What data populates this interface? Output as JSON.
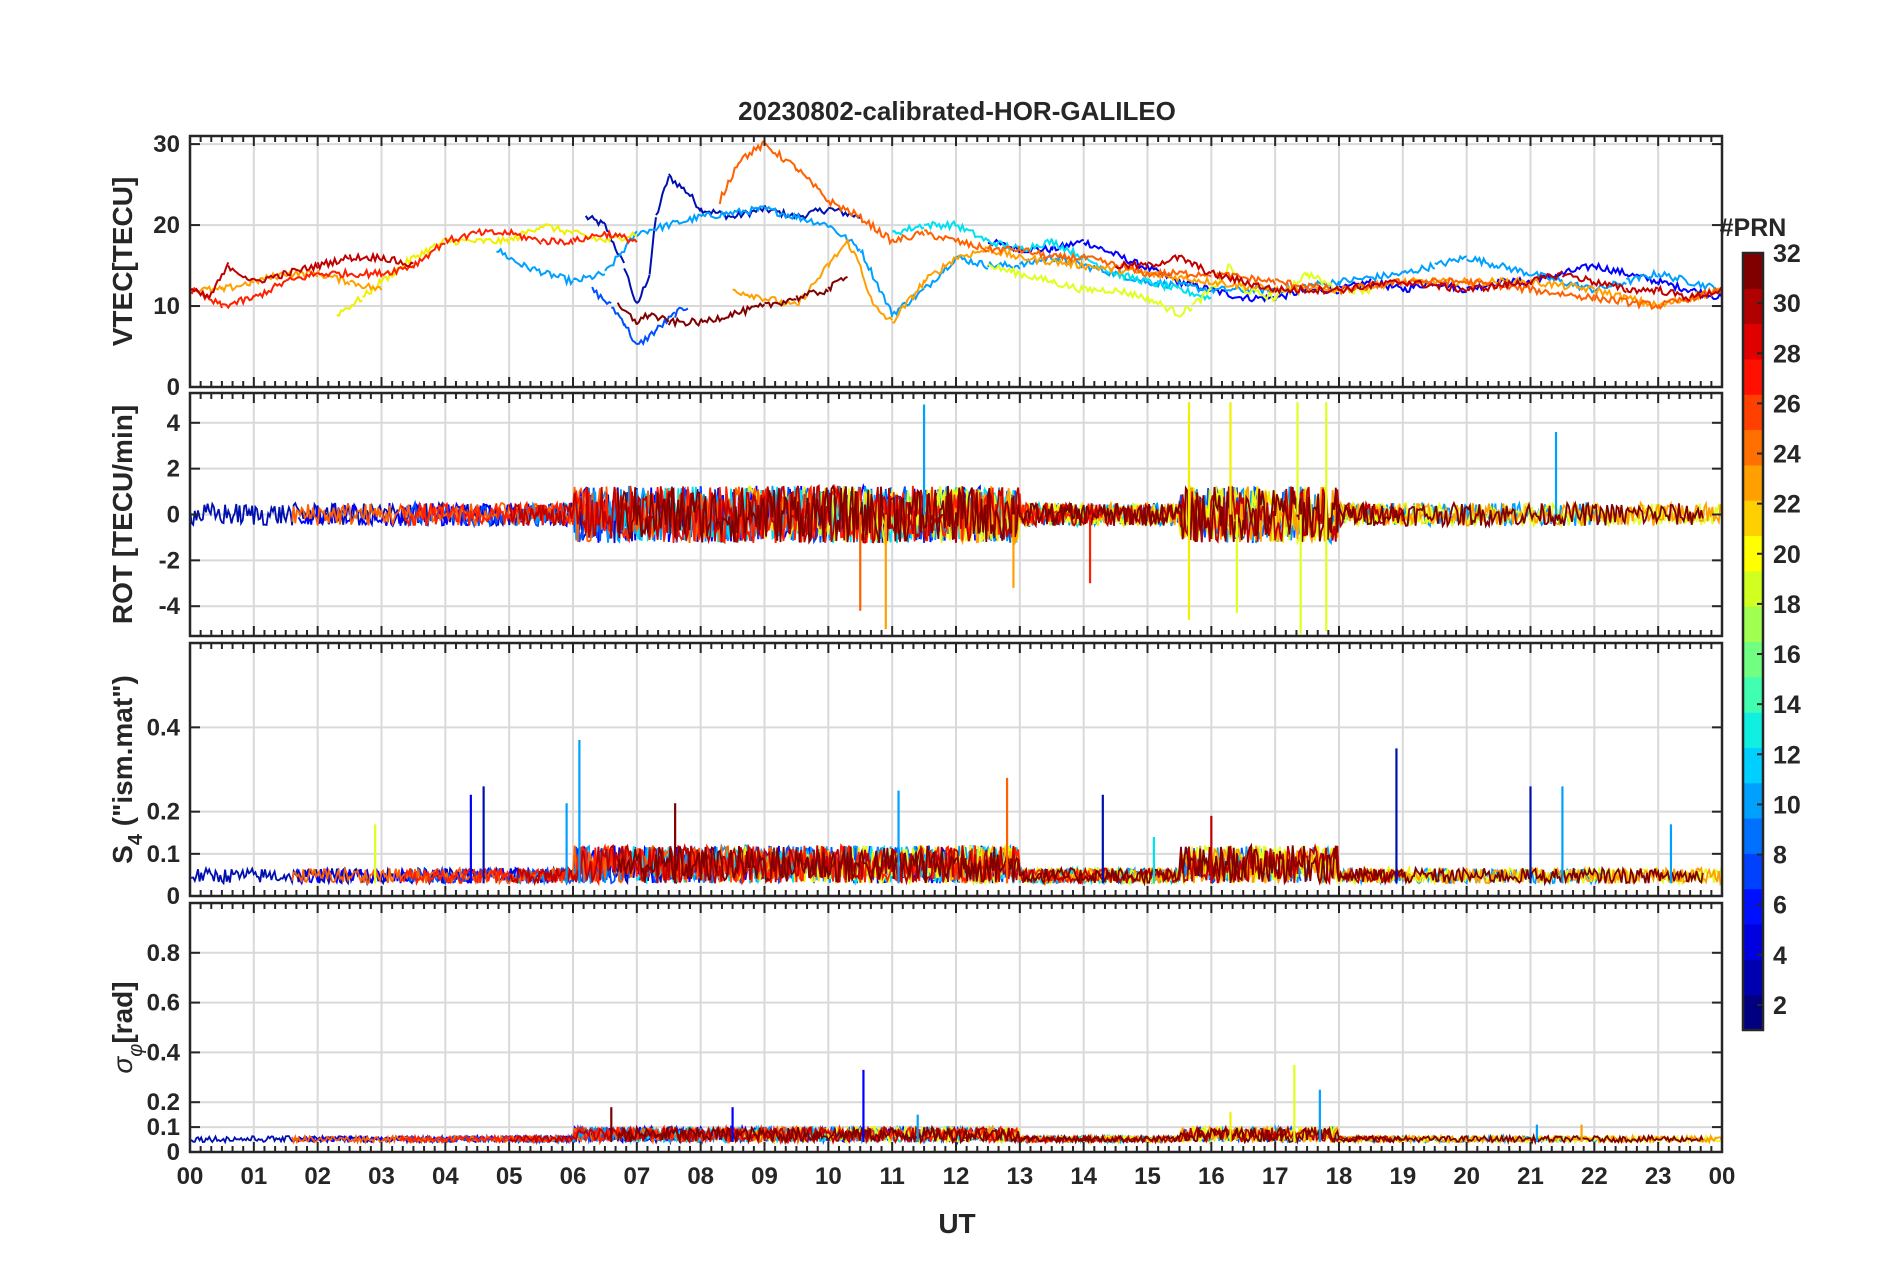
{
  "figure": {
    "title": "20230802-calibrated-HOR-GALILEO",
    "colors": {
      "grid": "#d9d9d9",
      "axes": "#262626",
      "background": "#ffffff"
    }
  },
  "chart_data": [
    {
      "type": "line",
      "panel": "vtec",
      "title": "20230802-calibrated-HOR-GALILEO",
      "ylabel": "VTEC[TECU]",
      "xlabel": "",
      "xlim": [
        0,
        24
      ],
      "ylim": [
        0,
        31
      ],
      "yticks": [
        0,
        10,
        20,
        30
      ],
      "ytick_labels": [
        "0",
        "10",
        "20",
        "30"
      ],
      "grid": true,
      "series": [
        {
          "prn": 2,
          "color": "#0010b0",
          "x": [
            6.2,
            6.5,
            6.8,
            7.0,
            7.2,
            7.3,
            7.5,
            7.8,
            8.0,
            8.5,
            9.0,
            9.5,
            10.0,
            10.5
          ],
          "y": [
            21,
            20,
            15,
            10,
            14,
            21,
            26,
            24,
            22,
            21,
            22,
            21,
            22,
            21
          ]
        },
        {
          "prn": 3,
          "color": "#0000ff",
          "x": [
            12.5,
            13.0,
            13.5,
            14.0,
            14.3,
            15.5,
            16.0,
            16.5,
            17.0,
            17.5,
            18.0,
            18.5,
            19.0,
            19.5,
            20.0,
            20.5,
            21.0,
            21.5,
            22.0,
            22.5,
            23.0,
            23.5,
            24.0
          ],
          "y": [
            18,
            17,
            17,
            18,
            17,
            13,
            12,
            11,
            11,
            12,
            12,
            13,
            12,
            13,
            12,
            13,
            13,
            14,
            15,
            14,
            13,
            12,
            11
          ]
        },
        {
          "prn": 7,
          "color": "#0050ff",
          "x": [
            6.3,
            6.6,
            6.8,
            7.0,
            7.3,
            7.6,
            7.8
          ],
          "y": [
            12,
            10,
            8,
            5,
            7,
            9,
            10
          ]
        },
        {
          "prn": 10,
          "color": "#00a0ff",
          "x": [
            4.8,
            5.2,
            5.6,
            6.0,
            6.5,
            7.0,
            8.0,
            9.0,
            10.0,
            10.5,
            11.0,
            11.5,
            12.0,
            12.5,
            13.0,
            13.5,
            14.0,
            15.0,
            16.0,
            17.0,
            18.0,
            19.0,
            19.5,
            20.0,
            20.5,
            21.0,
            21.5,
            22.0,
            22.5,
            23.0,
            23.5,
            24.0
          ],
          "y": [
            17,
            15,
            14,
            13,
            14,
            19,
            21,
            22,
            20,
            17,
            9,
            12,
            16,
            15,
            15,
            16,
            15,
            13,
            12,
            12,
            13,
            14,
            15,
            16,
            15,
            14,
            13,
            12,
            13,
            14,
            13,
            12
          ]
        },
        {
          "prn": 13,
          "color": "#00e0f0",
          "x": [
            11.0,
            11.5,
            12.0,
            12.5,
            13.0,
            13.5,
            14.0,
            14.5,
            15.0,
            15.5,
            16.0
          ],
          "y": [
            19,
            20,
            20,
            18,
            17,
            18,
            16,
            14,
            13,
            12,
            11
          ]
        },
        {
          "prn": 20,
          "color": "#f0f000",
          "x": [
            2.3,
            2.7,
            3.0,
            3.5,
            4.0,
            4.5,
            5.0,
            5.5,
            6.0,
            6.5,
            7.0
          ],
          "y": [
            9,
            11,
            13,
            16,
            18,
            18,
            18,
            20,
            19,
            18,
            19
          ]
        },
        {
          "prn": 21,
          "color": "#e0ff20",
          "x": [
            12.5,
            13.0,
            13.5,
            14.0,
            14.5,
            15.0,
            15.5,
            15.7,
            16.0,
            16.3,
            16.5,
            17.0,
            17.5,
            18.0,
            18.5
          ],
          "y": [
            15,
            14,
            13,
            12,
            12,
            11,
            9,
            10,
            12,
            15,
            12,
            11,
            14,
            12,
            12
          ]
        },
        {
          "prn": 23,
          "color": "#ffa000",
          "x": [
            0.0,
            0.5,
            1.0,
            1.5,
            2.0,
            2.5,
            3.0,
            8.5,
            9.0,
            9.5,
            10.0,
            10.3,
            10.5,
            10.7,
            11.0,
            11.5,
            12.0,
            12.5,
            13.0,
            14.0,
            15.0,
            16.0,
            17.0,
            18.0,
            19.0,
            20.0,
            21.0,
            22.0,
            23.0,
            24.0
          ],
          "y": [
            12,
            12,
            13,
            14,
            14,
            13,
            12,
            12,
            11,
            10,
            15,
            18,
            15,
            10,
            8,
            13,
            16,
            17,
            16,
            15,
            14,
            13,
            12,
            12,
            13,
            13,
            13,
            12,
            10,
            12
          ]
        },
        {
          "prn": 25,
          "color": "#ff6000",
          "x": [
            8.3,
            8.6,
            9.0,
            9.5,
            10.0,
            10.5,
            11.0,
            11.5,
            12.0,
            12.5,
            13.0,
            13.5,
            14.0,
            14.5,
            15.0,
            16.0,
            17.0,
            18.0,
            19.0,
            20.0,
            21.0,
            22.0,
            23.0,
            24.0
          ],
          "y": [
            23,
            28,
            30,
            27,
            23,
            21,
            18,
            19,
            18,
            17,
            17,
            16,
            16,
            15,
            14,
            14,
            13,
            12,
            13,
            13,
            12,
            11,
            10,
            12
          ]
        },
        {
          "prn": 27,
          "color": "#ff2000",
          "x": [
            0.0,
            0.5,
            1.0,
            1.5,
            2.0,
            3.0,
            3.5,
            4.0,
            4.5,
            5.0,
            5.5,
            6.0,
            6.5,
            7.0
          ],
          "y": [
            12,
            10,
            11,
            13,
            14,
            14,
            15,
            18,
            19,
            19,
            18,
            18,
            19,
            18
          ]
        },
        {
          "prn": 30,
          "color": "#c00000",
          "x": [
            0.0,
            0.3,
            0.6,
            1.0,
            1.5,
            2.0,
            2.5,
            3.0,
            3.5,
            14.5,
            15.0,
            15.5,
            16.0,
            17.0,
            18.0,
            19.0,
            20.0,
            21.0,
            21.5,
            22.0,
            22.5,
            23.0,
            23.5,
            24.0
          ],
          "y": [
            12,
            11,
            15,
            13,
            14,
            15,
            16,
            16,
            15,
            15,
            15,
            16,
            14,
            12,
            12,
            13,
            12,
            13,
            14,
            13,
            12,
            12,
            11,
            12
          ]
        },
        {
          "prn": 32,
          "color": "#800000",
          "x": [
            6.7,
            7.0,
            7.2,
            7.5,
            8.0,
            8.5,
            9.0,
            9.5,
            10.0,
            10.3
          ],
          "y": [
            10,
            8,
            9,
            8,
            8,
            9,
            10,
            11,
            12,
            14
          ]
        }
      ]
    },
    {
      "type": "line",
      "panel": "rot",
      "ylabel": "ROT [TECU/min]",
      "xlabel": "",
      "xlim": [
        0,
        24
      ],
      "ylim": [
        -5.3,
        5.3
      ],
      "yticks": [
        -4,
        -2,
        0,
        2,
        4
      ],
      "ytick_labels": [
        "-4",
        "-2",
        "0",
        "2",
        "4"
      ],
      "grid": true,
      "spikes": [
        {
          "x": 15.65,
          "y": 4.9,
          "color": "#f0f000"
        },
        {
          "x": 15.65,
          "y": -4.6,
          "color": "#f0f000"
        },
        {
          "x": 16.3,
          "y": 4.9,
          "color": "#f0f000"
        },
        {
          "x": 16.4,
          "y": -4.3,
          "color": "#e0ff20"
        },
        {
          "x": 17.35,
          "y": 4.9,
          "color": "#e0ff20"
        },
        {
          "x": 17.4,
          "y": -5.2,
          "color": "#e0ff20"
        },
        {
          "x": 17.8,
          "y": 4.9,
          "color": "#e0ff20"
        },
        {
          "x": 17.8,
          "y": -5.1,
          "color": "#e0ff20"
        },
        {
          "x": 11.5,
          "y": 4.8,
          "color": "#00a0ff"
        },
        {
          "x": 10.9,
          "y": -5.0,
          "color": "#ffa000"
        },
        {
          "x": 10.5,
          "y": -4.2,
          "color": "#ff6000"
        },
        {
          "x": 21.4,
          "y": 3.6,
          "color": "#00a0ff"
        },
        {
          "x": 12.9,
          "y": -3.2,
          "color": "#ffa000"
        },
        {
          "x": 14.1,
          "y": -3.0,
          "color": "#ff2000"
        }
      ]
    },
    {
      "type": "line",
      "panel": "s4",
      "ylabel": "S4 (\"ism.mat\")",
      "xlabel": "",
      "xlim": [
        0,
        24
      ],
      "ylim": [
        0,
        0.6
      ],
      "yticks": [
        0,
        0.1,
        0.2,
        0.4
      ],
      "ytick_labels": [
        "0",
        "0.1",
        "0.2",
        "0.4"
      ],
      "grid": true,
      "spikes": [
        {
          "x": 6.1,
          "y": 0.37,
          "color": "#00a0ff"
        },
        {
          "x": 18.9,
          "y": 0.35,
          "color": "#0010b0"
        },
        {
          "x": 12.8,
          "y": 0.28,
          "color": "#ff6000"
        },
        {
          "x": 4.6,
          "y": 0.26,
          "color": "#0010b0"
        },
        {
          "x": 21.0,
          "y": 0.26,
          "color": "#0010b0"
        },
        {
          "x": 21.5,
          "y": 0.26,
          "color": "#00a0ff"
        },
        {
          "x": 14.3,
          "y": 0.24,
          "color": "#0010b0"
        },
        {
          "x": 5.9,
          "y": 0.22,
          "color": "#00a0ff"
        },
        {
          "x": 7.6,
          "y": 0.22,
          "color": "#800000"
        },
        {
          "x": 11.1,
          "y": 0.25,
          "color": "#00a0ff"
        },
        {
          "x": 2.9,
          "y": 0.17,
          "color": "#e0ff20"
        },
        {
          "x": 4.4,
          "y": 0.24,
          "color": "#0000ff"
        },
        {
          "x": 16.0,
          "y": 0.19,
          "color": "#c00000"
        },
        {
          "x": 15.1,
          "y": 0.14,
          "color": "#00e0f0"
        },
        {
          "x": 23.2,
          "y": 0.17,
          "color": "#00a0ff"
        }
      ]
    },
    {
      "type": "line",
      "panel": "sigma_phi",
      "ylabel": "σφ[rad]",
      "xlabel": "UT",
      "xlim": [
        0,
        24
      ],
      "ylim": [
        0,
        1.0
      ],
      "yticks": [
        0,
        0.1,
        0.2,
        0.4,
        0.6,
        0.8
      ],
      "ytick_labels": [
        "0",
        "0.1",
        "0.2",
        "0.4",
        "0.6",
        "0.8"
      ],
      "xticks": [
        0,
        1,
        2,
        3,
        4,
        5,
        6,
        7,
        8,
        9,
        10,
        11,
        12,
        13,
        14,
        15,
        16,
        17,
        18,
        19,
        20,
        21,
        22,
        23,
        24
      ],
      "xtick_labels": [
        "00",
        "01",
        "02",
        "03",
        "04",
        "05",
        "06",
        "07",
        "08",
        "09",
        "10",
        "11",
        "12",
        "13",
        "14",
        "15",
        "16",
        "17",
        "18",
        "19",
        "20",
        "21",
        "22",
        "23",
        "00"
      ],
      "grid": true,
      "spikes": [
        {
          "x": 10.55,
          "y": 0.33,
          "color": "#0000ff"
        },
        {
          "x": 17.3,
          "y": 0.35,
          "color": "#e0ff20"
        },
        {
          "x": 17.7,
          "y": 0.25,
          "color": "#00a0ff"
        },
        {
          "x": 16.3,
          "y": 0.16,
          "color": "#f0f000"
        },
        {
          "x": 8.5,
          "y": 0.18,
          "color": "#0000ff"
        },
        {
          "x": 6.6,
          "y": 0.18,
          "color": "#800000"
        },
        {
          "x": 11.4,
          "y": 0.15,
          "color": "#00a0ff"
        },
        {
          "x": 21.1,
          "y": 0.11,
          "color": "#00a0ff"
        },
        {
          "x": 21.8,
          "y": 0.11,
          "color": "#ffa000"
        }
      ]
    }
  ],
  "colorbar": {
    "label": "#PRN",
    "min": 1,
    "max": 32,
    "ticks": [
      2,
      4,
      6,
      8,
      10,
      12,
      14,
      16,
      18,
      20,
      22,
      24,
      26,
      28,
      30,
      32
    ],
    "tick_labels": [
      "2",
      "4",
      "6",
      "8",
      "10",
      "12",
      "14",
      "16",
      "18",
      "20",
      "22",
      "24",
      "26",
      "28",
      "30",
      "32"
    ],
    "colors": [
      "#000080",
      "#0000b0",
      "#0000e0",
      "#0010ff",
      "#0040ff",
      "#0070ff",
      "#00a0ff",
      "#00d0ff",
      "#10f0e0",
      "#40ffb0",
      "#70ff80",
      "#a0ff50",
      "#d0ff20",
      "#ffff00",
      "#ffd000",
      "#ffa000",
      "#ff7000",
      "#ff4000",
      "#ff1000",
      "#e00000",
      "#b00000",
      "#800000"
    ]
  }
}
